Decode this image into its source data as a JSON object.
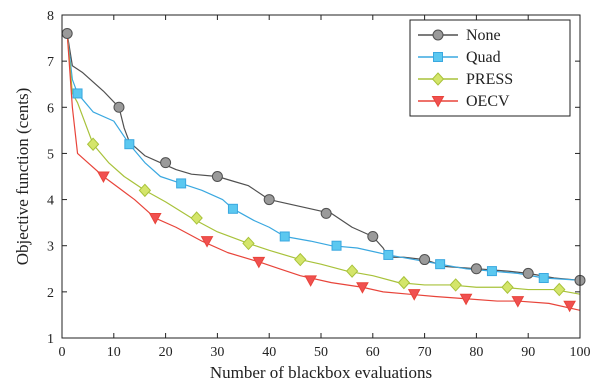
{
  "chart_data": {
    "type": "line",
    "title": "",
    "xlabel": "Number of blackbox evaluations",
    "ylabel": "Objective function (cents)",
    "xlim": [
      0,
      100
    ],
    "ylim": [
      1,
      8
    ],
    "xticks": [
      0,
      10,
      20,
      30,
      40,
      50,
      60,
      70,
      80,
      90,
      100
    ],
    "yticks": [
      1,
      2,
      3,
      4,
      5,
      6,
      7,
      8
    ],
    "xtick_labels": [
      "0",
      "10",
      "20",
      "30",
      "40",
      "50",
      "60",
      "70",
      "80",
      "90",
      "100"
    ],
    "ytick_labels": [
      "1",
      "2",
      "3",
      "4",
      "5",
      "6",
      "7",
      "8"
    ],
    "grid": false,
    "legend_position": "top-right",
    "series": [
      {
        "name": "None",
        "color": "#505050",
        "marker": "circle",
        "marker_fill": "#9a9a9a",
        "x": [
          1,
          2,
          4,
          8,
          11,
          12,
          13,
          16,
          19,
          22,
          25,
          30,
          33,
          36,
          40,
          44,
          48,
          52,
          56,
          60,
          62,
          63,
          66,
          70,
          74,
          80,
          86,
          90,
          95,
          100
        ],
        "y": [
          7.6,
          6.9,
          6.75,
          6.35,
          6.0,
          5.55,
          5.25,
          4.95,
          4.8,
          4.65,
          4.55,
          4.5,
          4.4,
          4.3,
          4.0,
          3.9,
          3.8,
          3.7,
          3.4,
          3.2,
          2.95,
          2.75,
          2.75,
          2.7,
          2.55,
          2.5,
          2.45,
          2.4,
          2.3,
          2.25
        ],
        "marker_x": [
          1,
          11,
          20,
          30,
          40,
          51,
          60,
          70,
          80,
          90,
          100
        ],
        "marker_y": [
          7.6,
          6.0,
          4.8,
          4.5,
          4.0,
          3.7,
          3.2,
          2.7,
          2.5,
          2.4,
          2.25
        ]
      },
      {
        "name": "Quad",
        "color": "#3aa8e0",
        "marker": "square",
        "marker_fill": "#5bc8f0",
        "x": [
          1,
          2,
          3,
          6,
          10,
          13,
          16,
          19,
          23,
          27,
          31,
          33,
          37,
          40,
          43,
          48,
          52,
          57,
          63,
          68,
          73,
          78,
          83,
          88,
          93,
          100
        ],
        "y": [
          7.6,
          6.6,
          6.3,
          5.9,
          5.7,
          5.2,
          4.8,
          4.5,
          4.35,
          4.2,
          4.0,
          3.8,
          3.55,
          3.4,
          3.2,
          3.1,
          3.0,
          2.95,
          2.8,
          2.7,
          2.6,
          2.5,
          2.45,
          2.4,
          2.3,
          2.25
        ],
        "marker_x": [
          3,
          13,
          23,
          33,
          43,
          53,
          63,
          73,
          83,
          93
        ],
        "marker_y": [
          6.3,
          5.2,
          4.35,
          3.8,
          3.2,
          3.0,
          2.8,
          2.6,
          2.45,
          2.3
        ]
      },
      {
        "name": "PRESS",
        "color": "#a8c23a",
        "marker": "diamond",
        "marker_fill": "#d4e56a",
        "x": [
          1,
          2,
          3,
          6,
          9,
          12,
          16,
          20,
          25,
          30,
          36,
          40,
          46,
          50,
          55,
          60,
          65,
          70,
          75,
          80,
          85,
          90,
          95,
          100
        ],
        "y": [
          7.6,
          6.3,
          6.1,
          5.2,
          4.8,
          4.5,
          4.2,
          3.95,
          3.6,
          3.3,
          3.05,
          2.9,
          2.7,
          2.6,
          2.45,
          2.35,
          2.2,
          2.15,
          2.15,
          2.1,
          2.1,
          2.05,
          2.05,
          1.95
        ],
        "marker_x": [
          6,
          16,
          26,
          36,
          46,
          56,
          66,
          76,
          86,
          96
        ],
        "marker_y": [
          5.2,
          4.2,
          3.6,
          3.05,
          2.7,
          2.45,
          2.2,
          2.15,
          2.1,
          2.05
        ]
      },
      {
        "name": "OECV",
        "color": "#e8443a",
        "marker": "triangle-down",
        "marker_fill": "#f05050",
        "x": [
          1,
          2,
          3,
          5,
          8,
          11,
          14,
          18,
          22,
          27,
          32,
          38,
          42,
          46,
          52,
          58,
          62,
          67,
          72,
          78,
          84,
          88,
          94,
          100
        ],
        "y": [
          7.6,
          6.0,
          5.0,
          4.8,
          4.5,
          4.25,
          4.0,
          3.6,
          3.4,
          3.1,
          2.85,
          2.65,
          2.5,
          2.35,
          2.2,
          2.1,
          2.0,
          1.95,
          1.9,
          1.85,
          1.8,
          1.8,
          1.75,
          1.6
        ],
        "marker_x": [
          8,
          18,
          28,
          38,
          48,
          58,
          68,
          78,
          88,
          98
        ],
        "marker_y": [
          4.5,
          3.6,
          3.1,
          2.65,
          2.25,
          2.1,
          1.95,
          1.85,
          1.8,
          1.7
        ]
      }
    ]
  }
}
